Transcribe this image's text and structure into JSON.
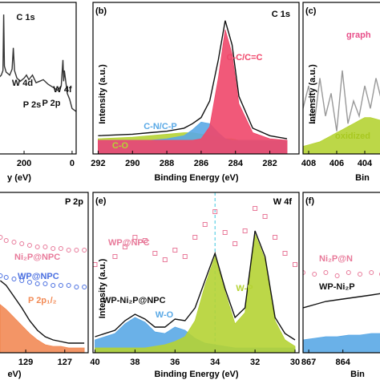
{
  "chart_data": [
    {
      "type": "line",
      "x_label": "y (eV)",
      "xlim": [
        307,
        -17
      ],
      "xticks": [
        200,
        0
      ],
      "ylim": [
        0,
        100
      ],
      "annotations": [
        {
          "text": "C 1s"
        },
        {
          "text": "W 4d"
        },
        {
          "text": "P 2s"
        },
        {
          "text": "P 2p"
        },
        {
          "text": "W 4f"
        }
      ],
      "x": [
        307,
        295,
        288,
        285,
        282,
        275,
        260,
        250,
        245,
        240,
        230,
        215,
        200,
        190,
        180,
        165,
        150,
        135,
        120,
        100,
        80,
        60,
        45,
        38,
        35,
        32,
        20,
        10,
        0,
        -17
      ],
      "series": [
        {
          "color": "#333333",
          "values": [
            50,
            52,
            55,
            92,
            58,
            54,
            52,
            56,
            70,
            55,
            50,
            48,
            50,
            52,
            49,
            52,
            47,
            48,
            49,
            46,
            44,
            42,
            45,
            62,
            48,
            55,
            40,
            36,
            30,
            28
          ]
        }
      ]
    },
    {
      "type": "line",
      "panel_label": "(b)",
      "title": "C 1s",
      "x_label": "Binding Energy (eV)",
      "y_label": "Intensity (a.u.)",
      "xlim": [
        292.3,
        280.3
      ],
      "xticks": [
        292,
        290,
        288,
        286,
        284,
        282
      ],
      "ylim": [
        0,
        100
      ],
      "x": [
        292,
        290,
        289,
        288,
        287,
        286.5,
        286,
        285.5,
        285,
        284.6,
        284.2,
        283.8,
        283,
        282,
        281
      ],
      "series": [
        {
          "name": "C-O",
          "color": "#b5d334",
          "fill": true,
          "values": [
            10,
            11,
            12,
            13,
            14,
            14,
            13,
            12,
            11,
            10,
            10,
            9,
            9,
            9,
            9
          ]
        },
        {
          "name": "C-N/C-P",
          "color": "#5aa9e6",
          "fill": true,
          "values": [
            9,
            9,
            9,
            10,
            12,
            16,
            21,
            20,
            14,
            10,
            9,
            9,
            9,
            9,
            9
          ]
        },
        {
          "name": "C-C/C=C",
          "color": "#f0476a",
          "fill": true,
          "values": [
            9,
            9,
            9,
            9,
            9,
            9,
            10,
            18,
            50,
            82,
            66,
            33,
            14,
            10,
            9
          ]
        },
        {
          "color": "#111111",
          "values": [
            12,
            13,
            14,
            15,
            17,
            20,
            24,
            35,
            62,
            88,
            72,
            38,
            17,
            12,
            10
          ]
        }
      ]
    },
    {
      "type": "line",
      "panel_label": "(c)",
      "x_label": "Bin",
      "y_label": "Intensity (a.u.)",
      "xlim": [
        408.4,
        402.8
      ],
      "xticks": [
        408,
        406,
        404
      ],
      "ylim": [
        0,
        100
      ],
      "annotations": [
        {
          "text": "graph",
          "color": "#e8508a"
        },
        {
          "text": "oxidized",
          "color": "#a8c820"
        }
      ],
      "x": [
        408.4,
        408,
        407.6,
        407.2,
        406.8,
        406.4,
        406,
        405.6,
        405.2,
        404.8,
        404.4,
        404,
        403.6,
        403.2,
        402.8
      ],
      "series": [
        {
          "color": "#b5d334",
          "fill": true,
          "values": [
            5,
            6,
            7,
            8,
            10,
            12,
            14,
            16,
            18,
            20,
            22,
            24,
            24,
            23,
            22
          ]
        },
        {
          "color": "#999999",
          "values": [
            30,
            45,
            20,
            50,
            25,
            40,
            15,
            55,
            20,
            35,
            25,
            45,
            30,
            50,
            35
          ]
        }
      ]
    },
    {
      "type": "line",
      "title": "P 2p",
      "x_label": "eV)",
      "xlim": [
        130.4,
        125.8
      ],
      "xticks": [
        129,
        127
      ],
      "ylim": [
        0,
        100
      ],
      "x": [
        130.3,
        130,
        129.6,
        129.2,
        128.8,
        128.4,
        128,
        127.6,
        127.2,
        126.8,
        126.4,
        126
      ],
      "series": [
        {
          "name": "Ni₂P@NPC",
          "color": "#e87a9a",
          "marker": "circle",
          "values": [
            72,
            70,
            69,
            68,
            67,
            66,
            66,
            65,
            65,
            64,
            64,
            64
          ]
        },
        {
          "name": "WP@NPC",
          "color": "#4a6fe0",
          "marker": "circle",
          "values": [
            48,
            47,
            46,
            45,
            44,
            43,
            43,
            42,
            42,
            42,
            41,
            41
          ]
        },
        {
          "name": "P 2p₁/₂",
          "color": "#f28a55",
          "fill": true,
          "values": [
            30,
            27,
            22,
            17,
            12,
            8,
            5,
            4,
            4,
            3,
            3,
            3
          ]
        },
        {
          "color": "#111111",
          "values": [
            45,
            42,
            35,
            28,
            20,
            14,
            10,
            8,
            7,
            6,
            6,
            6
          ]
        }
      ]
    },
    {
      "type": "line",
      "panel_label": "(e)",
      "title": "W 4f",
      "x_label": "Binding Energy (eV)",
      "y_label": "Intensity (a.u.)",
      "xlim": [
        40.1,
        29.8
      ],
      "xticks": [
        40,
        38,
        36,
        34,
        32,
        30
      ],
      "ylim": [
        0,
        100
      ],
      "vline": 34,
      "x": [
        40,
        39,
        38.5,
        38,
        37.5,
        37,
        36.5,
        36,
        35.5,
        35,
        34.5,
        34,
        33.5,
        33,
        32.5,
        32,
        31.5,
        31,
        30.5,
        30
      ],
      "series": [
        {
          "name": "WP@NPC",
          "color": "#e87a9a",
          "marker": "square",
          "values": [
            55,
            60,
            66,
            72,
            70,
            62,
            58,
            64,
            60,
            72,
            80,
            88,
            75,
            68,
            76,
            90,
            85,
            72,
            62,
            55
          ]
        },
        {
          "name": "W-O",
          "color": "#5aa9e6",
          "fill": true,
          "values": [
            8,
            12,
            18,
            22,
            19,
            13,
            12,
            16,
            14,
            9,
            6,
            5,
            4,
            3,
            3,
            3,
            3,
            3,
            3,
            3
          ]
        },
        {
          "name": "W-P",
          "color": "#b5d334",
          "fill": true,
          "values": [
            3,
            3,
            3,
            3,
            3,
            4,
            5,
            7,
            10,
            20,
            42,
            60,
            38,
            18,
            25,
            74,
            58,
            20,
            8,
            4
          ]
        },
        {
          "name": "WP-Ni₂P@NPC",
          "color": "#111111",
          "values": [
            10,
            14,
            20,
            24,
            21,
            16,
            16,
            21,
            20,
            28,
            45,
            62,
            40,
            22,
            28,
            76,
            60,
            22,
            12,
            8
          ]
        }
      ]
    },
    {
      "type": "line",
      "panel_label": "(f)",
      "x_label": "Bin",
      "xlim": [
        867.5,
        860.6
      ],
      "xticks": [
        867,
        864
      ],
      "ylim": [
        0,
        100
      ],
      "x": [
        867.5,
        866.5,
        865.5,
        864.5,
        863.5,
        862.5,
        861.5,
        860.6
      ],
      "series": [
        {
          "name": "Ni₂P@N",
          "color": "#e87a9a",
          "marker": "circle",
          "values": [
            50,
            49,
            50,
            48,
            50,
            49,
            50,
            49
          ]
        },
        {
          "color": "#5aa9e6",
          "fill": true,
          "values": [
            8,
            9,
            10,
            10,
            11,
            11,
            12,
            12
          ]
        },
        {
          "name": "WP-Ni₂P",
          "color": "#111111",
          "values": [
            28,
            30,
            32,
            33,
            34,
            35,
            36,
            37
          ]
        }
      ]
    }
  ]
}
